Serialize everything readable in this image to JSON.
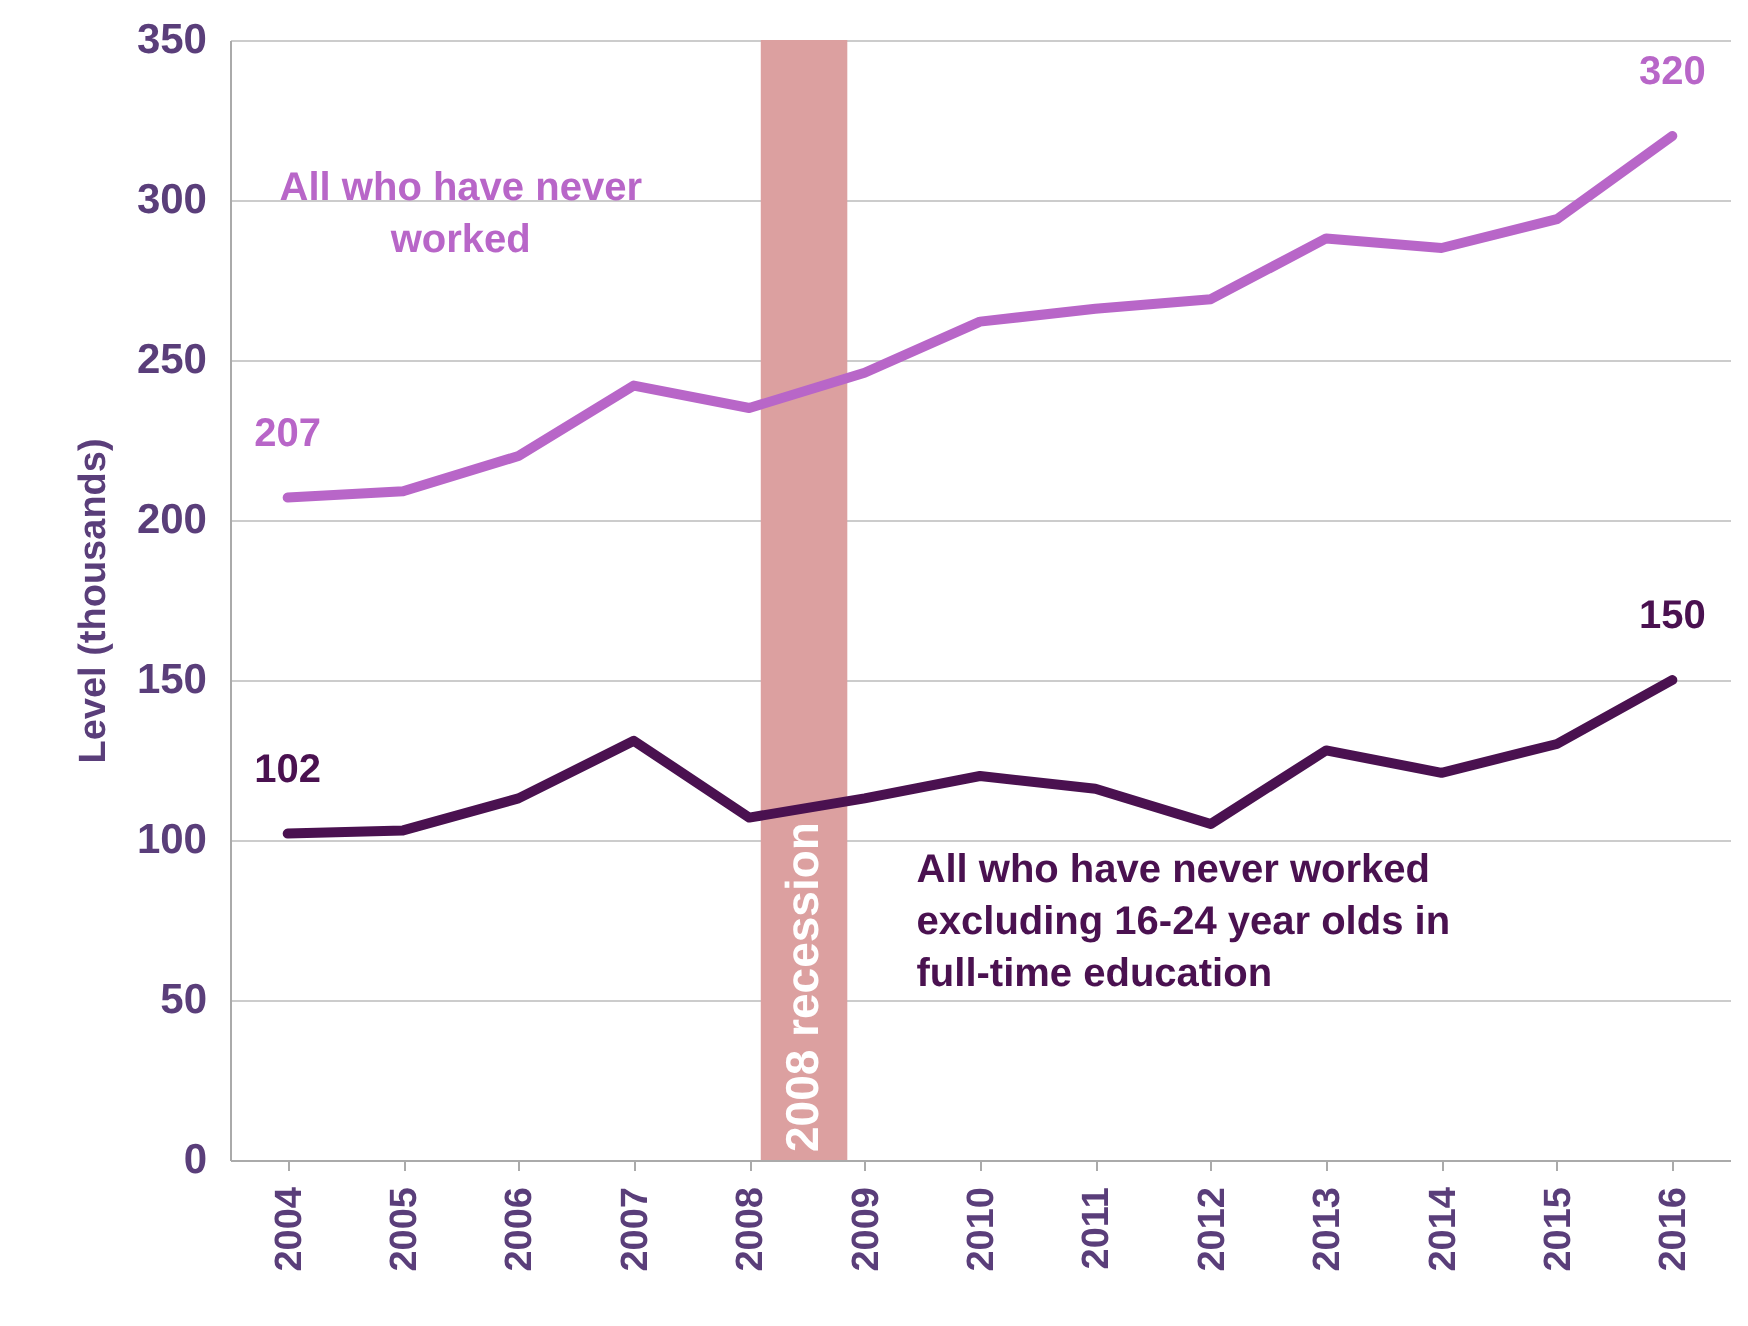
{
  "chart_data": {
    "type": "line",
    "ylabel": "Level (thousands)",
    "x": [
      2004,
      2005,
      2006,
      2007,
      2008,
      2009,
      2010,
      2011,
      2012,
      2013,
      2014,
      2015,
      2016
    ],
    "xlim": [
      2003.5,
      2016.5
    ],
    "xticks": [
      2004,
      2005,
      2006,
      2007,
      2008,
      2009,
      2010,
      2011,
      2012,
      2013,
      2014,
      2015,
      2016
    ],
    "ylim": [
      0,
      350
    ],
    "yticks": [
      0,
      50,
      100,
      150,
      200,
      250,
      300,
      350
    ],
    "grid": "y",
    "series": [
      {
        "name": "All who have never worked",
        "color": "#b866c8",
        "values": [
          207,
          209,
          220,
          242,
          235,
          246,
          262,
          266,
          269,
          288,
          285,
          294,
          320
        ],
        "value_labels": [
          "207",
          null,
          null,
          null,
          null,
          null,
          null,
          null,
          null,
          null,
          null,
          null,
          "320"
        ]
      },
      {
        "name": "All who have never worked excluding 16-24 year olds in full-time education",
        "color": "#4a1150",
        "values": [
          102,
          103,
          113,
          131,
          107,
          113,
          120,
          116,
          105,
          128,
          121,
          130,
          150
        ],
        "value_labels": [
          "102",
          null,
          null,
          null,
          null,
          null,
          null,
          null,
          null,
          null,
          null,
          null,
          "150"
        ]
      }
    ],
    "bands": [
      {
        "axis": "x",
        "from": 2008.1,
        "to": 2008.85,
        "label": "2008 recession",
        "color": "#dca0a0"
      }
    ],
    "line_style": "solid"
  }
}
